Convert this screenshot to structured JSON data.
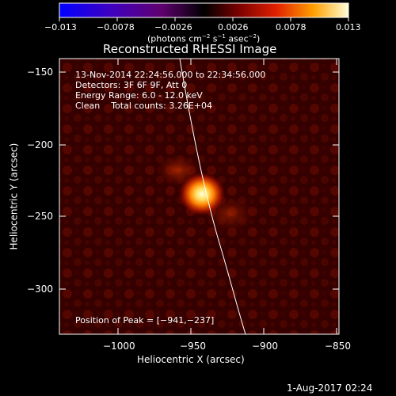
{
  "colorbar": {
    "ticks": [
      "−0.013",
      "−0.0078",
      "−0.0026",
      "0.0026",
      "0.0078",
      "0.013"
    ],
    "units_label": "(photons cm",
    "units_sup1": "−2",
    "units_mid": " s",
    "units_sup2": "−1",
    "units_end": " asec",
    "units_sup3": "−2",
    "units_close": ")"
  },
  "title": "Reconstructed RHESSI Image",
  "info_lines": [
    "13-Nov-2014 22:24:56.000 to 22:34:56.000",
    "Detectors: 3F 6F 9F, Att 0",
    "Energy Range: 6.0 - 12.0 keV",
    "Clean    Total counts: 3.26E+04"
  ],
  "peak_label": "Position of Peak = [−941,−237]",
  "axes": {
    "x_label": "Heliocentric X (arcsec)",
    "y_label": "Heliocentric Y (arcsec)",
    "x_ticks": [
      "−1000",
      "−950",
      "−900",
      "−850"
    ],
    "y_ticks": [
      "−150",
      "−200",
      "−250",
      "−300"
    ]
  },
  "footer_date": "1-Aug-2017 02:24",
  "colors": {
    "background": "#000000",
    "text": "#ffffff"
  }
}
